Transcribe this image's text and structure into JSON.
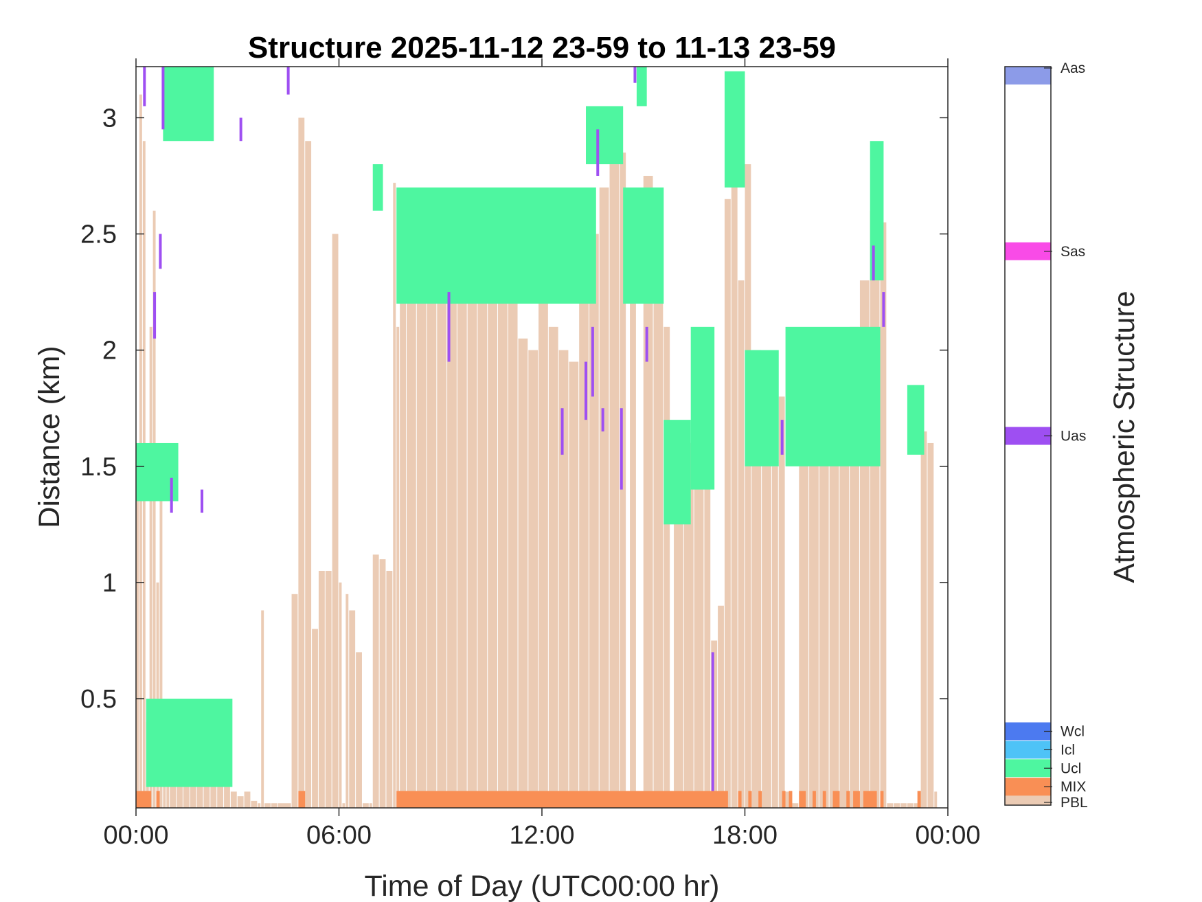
{
  "chart_data": {
    "type": "heatmap",
    "title": "Structure 2025-11-12 23-59 to 11-13 23-59",
    "xlabel": "Time of Day (UTC00:00 hr)",
    "ylabel": "Distance (km)",
    "xlim": [
      0,
      24
    ],
    "ylim": [
      0.03,
      3.22
    ],
    "xticks": [
      {
        "value": 0,
        "label": "00:00"
      },
      {
        "value": 6,
        "label": "06:00"
      },
      {
        "value": 12,
        "label": "12:00"
      },
      {
        "value": 18,
        "label": "18:00"
      },
      {
        "value": 24,
        "label": "00:00"
      }
    ],
    "yticks": [
      {
        "value": 0.5,
        "label": "0.5"
      },
      {
        "value": 1,
        "label": "1"
      },
      {
        "value": 1.5,
        "label": "1.5"
      },
      {
        "value": 2,
        "label": "2"
      },
      {
        "value": 2.5,
        "label": "2.5"
      },
      {
        "value": 3,
        "label": "3"
      }
    ],
    "grid": false,
    "colorbar": {
      "label": "Atmospheric Structure",
      "classes": [
        {
          "name": "PBL",
          "color": "#EBCBB4",
          "level": 0.0
        },
        {
          "name": "MIX",
          "color": "#F98F55",
          "level": 0.025
        },
        {
          "name": "Ucl",
          "color": "#4EF6A0",
          "level": 0.05
        },
        {
          "name": "Icl",
          "color": "#4EC3F7",
          "level": 0.075
        },
        {
          "name": "Wcl",
          "color": "#4C7AF0",
          "level": 0.1
        },
        {
          "name": "Uas",
          "color": "#9E4FF2",
          "level": 0.5
        },
        {
          "name": "Sas",
          "color": "#F94BE7",
          "level": 0.75
        },
        {
          "name": "Aas",
          "color": "#8C9BE8",
          "level": 1.0
        }
      ]
    },
    "pbl_top": [
      [
        0.0,
        1.45
      ],
      [
        0.1,
        3.1
      ],
      [
        0.2,
        2.9
      ],
      [
        0.3,
        0.4
      ],
      [
        0.4,
        2.1
      ],
      [
        0.5,
        2.6
      ],
      [
        0.6,
        1.0
      ],
      [
        0.7,
        1.4
      ],
      [
        0.8,
        0.35
      ],
      [
        0.9,
        0.3
      ],
      [
        1.0,
        0.3
      ],
      [
        1.2,
        0.28
      ],
      [
        1.4,
        0.25
      ],
      [
        1.6,
        0.22
      ],
      [
        1.8,
        0.22
      ],
      [
        2.0,
        0.2
      ],
      [
        2.2,
        0.2
      ],
      [
        2.4,
        0.15
      ],
      [
        2.6,
        0.12
      ],
      [
        2.8,
        0.1
      ],
      [
        3.0,
        0.08
      ],
      [
        3.2,
        0.1
      ],
      [
        3.4,
        0.06
      ],
      [
        3.6,
        0.05
      ],
      [
        3.7,
        0.88
      ],
      [
        3.8,
        0.05
      ],
      [
        4.0,
        0.05
      ],
      [
        4.2,
        0.05
      ],
      [
        4.6,
        0.95
      ],
      [
        4.8,
        3.0
      ],
      [
        5.0,
        2.9
      ],
      [
        5.2,
        0.8
      ],
      [
        5.4,
        1.05
      ],
      [
        5.6,
        1.05
      ],
      [
        5.8,
        2.5
      ],
      [
        6.0,
        1.0
      ],
      [
        6.1,
        0.05
      ],
      [
        6.2,
        0.95
      ],
      [
        6.3,
        0.88
      ],
      [
        6.5,
        0.7
      ],
      [
        6.7,
        0.05
      ],
      [
        6.9,
        0.05
      ],
      [
        7.0,
        1.12
      ],
      [
        7.2,
        1.1
      ],
      [
        7.4,
        1.05
      ],
      [
        7.6,
        2.72
      ],
      [
        7.7,
        2.1
      ],
      [
        7.8,
        2.4
      ],
      [
        8.0,
        2.55
      ],
      [
        8.3,
        2.5
      ],
      [
        8.6,
        2.45
      ],
      [
        8.9,
        2.38
      ],
      [
        9.2,
        2.4
      ],
      [
        9.5,
        2.3
      ],
      [
        9.8,
        2.25
      ],
      [
        10.1,
        2.2
      ],
      [
        10.4,
        2.3
      ],
      [
        10.7,
        2.28
      ],
      [
        11.0,
        2.2
      ],
      [
        11.3,
        2.05
      ],
      [
        11.6,
        2.0
      ],
      [
        11.9,
        2.3
      ],
      [
        12.2,
        2.1
      ],
      [
        12.5,
        2.0
      ],
      [
        12.8,
        1.95
      ],
      [
        13.1,
        2.3
      ],
      [
        13.4,
        2.5
      ],
      [
        13.7,
        2.7
      ],
      [
        14.0,
        2.8
      ],
      [
        14.3,
        2.85
      ],
      [
        14.5,
        0.05
      ],
      [
        14.6,
        2.6
      ],
      [
        14.8,
        0.05
      ],
      [
        15.0,
        2.75
      ],
      [
        15.3,
        2.4
      ],
      [
        15.6,
        2.1
      ],
      [
        15.8,
        0.05
      ],
      [
        15.9,
        1.5
      ],
      [
        16.2,
        1.6
      ],
      [
        16.5,
        1.9
      ],
      [
        16.8,
        1.8
      ],
      [
        17.0,
        0.75
      ],
      [
        17.2,
        0.9
      ],
      [
        17.4,
        2.65
      ],
      [
        17.6,
        3.0
      ],
      [
        17.8,
        2.3
      ],
      [
        18.0,
        2.8
      ],
      [
        18.2,
        2.0
      ],
      [
        18.5,
        1.6
      ],
      [
        18.8,
        1.5
      ],
      [
        19.0,
        1.8
      ],
      [
        19.2,
        0.1
      ],
      [
        19.4,
        0.05
      ],
      [
        19.6,
        1.6
      ],
      [
        19.9,
        1.65
      ],
      [
        20.2,
        1.7
      ],
      [
        20.5,
        1.8
      ],
      [
        20.8,
        1.9
      ],
      [
        21.1,
        2.1
      ],
      [
        21.4,
        2.3
      ],
      [
        21.7,
        2.6
      ],
      [
        22.0,
        2.55
      ],
      [
        22.2,
        0.05
      ],
      [
        22.4,
        0.05
      ],
      [
        22.6,
        0.05
      ],
      [
        22.8,
        0.05
      ],
      [
        23.0,
        0.05
      ],
      [
        23.2,
        1.65
      ],
      [
        23.4,
        1.6
      ],
      [
        23.6,
        0.1
      ]
    ],
    "mix_segments": [
      [
        0.0,
        0.45
      ],
      [
        0.6,
        0.7
      ],
      [
        4.8,
        5.0
      ],
      [
        7.7,
        17.5
      ],
      [
        17.8,
        17.9
      ],
      [
        18.1,
        18.2
      ],
      [
        18.4,
        18.5
      ],
      [
        19.1,
        19.2
      ],
      [
        19.3,
        19.4
      ],
      [
        19.6,
        19.8
      ],
      [
        20.0,
        20.1
      ],
      [
        20.3,
        20.4
      ],
      [
        20.6,
        20.8
      ],
      [
        21.0,
        21.1
      ],
      [
        21.2,
        21.4
      ],
      [
        21.5,
        21.9
      ],
      [
        22.0,
        22.1
      ],
      [
        23.1,
        23.2
      ]
    ],
    "ucl_layers": [
      {
        "x0": 0.0,
        "x1": 1.25,
        "y0": 1.35,
        "y1": 1.6
      },
      {
        "x0": 0.3,
        "x1": 2.85,
        "y0": 0.12,
        "y1": 0.5
      },
      {
        "x0": 7.0,
        "x1": 7.3,
        "y0": 2.6,
        "y1": 2.8
      },
      {
        "x0": 7.7,
        "x1": 13.6,
        "y0": 2.2,
        "y1": 2.7
      },
      {
        "x0": 13.3,
        "x1": 14.4,
        "y0": 2.8,
        "y1": 3.05
      },
      {
        "x0": 14.4,
        "x1": 15.6,
        "y0": 2.2,
        "y1": 2.7
      },
      {
        "x0": 15.6,
        "x1": 16.4,
        "y0": 1.25,
        "y1": 1.7
      },
      {
        "x0": 16.4,
        "x1": 17.1,
        "y0": 1.4,
        "y1": 2.1
      },
      {
        "x0": 17.4,
        "x1": 18.0,
        "y0": 2.7,
        "y1": 3.2
      },
      {
        "x0": 18.0,
        "x1": 19.0,
        "y0": 1.5,
        "y1": 2.0
      },
      {
        "x0": 19.2,
        "x1": 22.0,
        "y0": 1.5,
        "y1": 2.1
      },
      {
        "x0": 21.7,
        "x1": 22.1,
        "y0": 2.3,
        "y1": 2.9
      },
      {
        "x0": 22.8,
        "x1": 23.3,
        "y0": 1.55,
        "y1": 1.85
      },
      {
        "x0": 0.8,
        "x1": 2.3,
        "y0": 2.9,
        "y1": 3.22
      },
      {
        "x0": 14.8,
        "x1": 15.1,
        "y0": 3.05,
        "y1": 3.22
      }
    ],
    "uas_streaks": [
      [
        0.25,
        3.05,
        3.22
      ],
      [
        0.8,
        2.95,
        3.22
      ],
      [
        0.55,
        2.05,
        2.25
      ],
      [
        0.72,
        2.35,
        2.5
      ],
      [
        1.05,
        1.3,
        1.45
      ],
      [
        1.95,
        1.3,
        1.4
      ],
      [
        3.1,
        2.9,
        3.0
      ],
      [
        4.5,
        3.1,
        3.22
      ],
      [
        9.25,
        1.95,
        2.25
      ],
      [
        12.6,
        1.55,
        1.75
      ],
      [
        13.3,
        1.7,
        1.95
      ],
      [
        13.5,
        1.8,
        2.1
      ],
      [
        13.8,
        1.65,
        1.75
      ],
      [
        14.35,
        1.4,
        1.75
      ],
      [
        14.75,
        3.15,
        3.22
      ],
      [
        15.1,
        1.95,
        2.1
      ],
      [
        17.05,
        0.1,
        0.7
      ],
      [
        19.1,
        1.55,
        1.7
      ],
      [
        21.8,
        2.3,
        2.45
      ],
      [
        22.1,
        2.1,
        2.25
      ],
      [
        13.65,
        2.75,
        2.95
      ]
    ]
  }
}
